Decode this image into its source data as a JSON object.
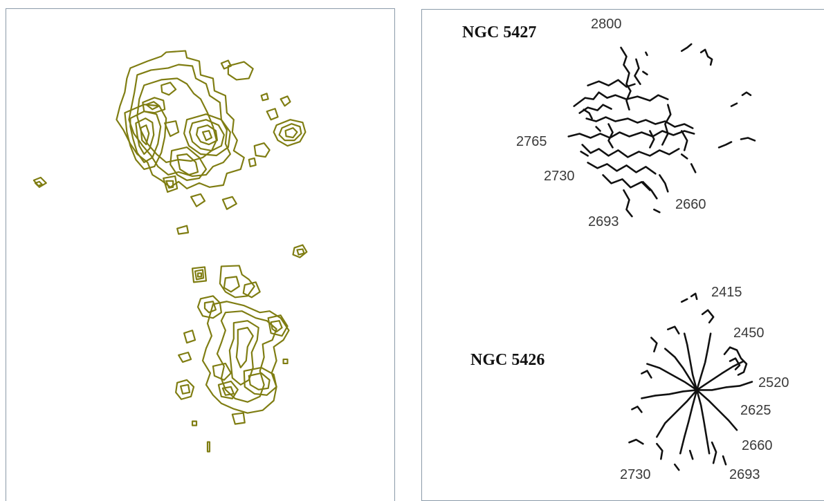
{
  "colors": {
    "left_contours": "#7f7d12",
    "right_contours": "#111111",
    "frame": "#8a9aa8"
  },
  "left_panel": {
    "content": "intensity-contour-map"
  },
  "right_panel": {
    "galaxies": [
      {
        "name": "NGC 5427",
        "velocity_labels": [
          "2800",
          "2765",
          "2730",
          "2693",
          "2660"
        ]
      },
      {
        "name": "NGC 5426",
        "velocity_labels": [
          "2415",
          "2450",
          "2520",
          "2625",
          "2660",
          "2730",
          "2693"
        ]
      }
    ]
  }
}
